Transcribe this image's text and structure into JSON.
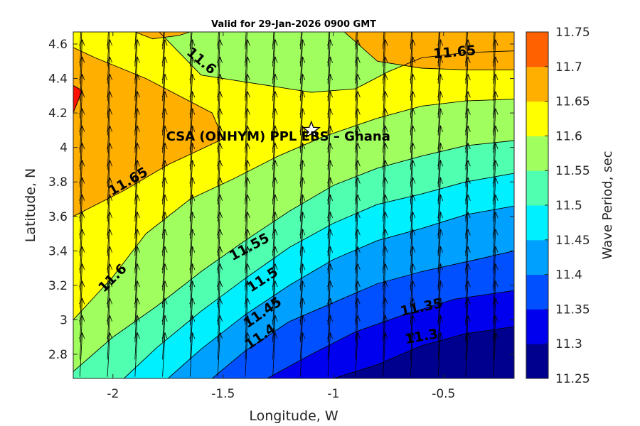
{
  "chart_data": {
    "type": "filled-contour",
    "title": "Valid for 29-Jan-2026 0900 GMT",
    "xlabel": "Longitude, W",
    "ylabel": "Latitude, N",
    "xlim": [
      -2.18,
      -0.18
    ],
    "ylim": [
      2.66,
      4.67
    ],
    "xticks": [
      -2,
      -1.5,
      -1,
      -0.5
    ],
    "xtick_labels": [
      "-2",
      "-1.5",
      "-1",
      "-0.5"
    ],
    "yticks": [
      2.8,
      3,
      3.2,
      3.4,
      3.6,
      3.8,
      4,
      4.2,
      4.4,
      4.6
    ],
    "ytick_labels": [
      "2.8",
      "3",
      "3.2",
      "3.4",
      "3.6",
      "3.8",
      "4",
      "4.2",
      "4.4",
      "4.6"
    ],
    "colorbar": {
      "label": "Wave Period, sec",
      "levels": [
        11.25,
        11.3,
        11.35,
        11.4,
        11.45,
        11.5,
        11.55,
        11.6,
        11.65,
        11.7,
        11.75
      ],
      "tick_labels": [
        "11.25",
        "11.3",
        "11.35",
        "11.4",
        "11.45",
        "11.5",
        "11.55",
        "11.6",
        "11.65",
        "11.7",
        "11.75"
      ],
      "colors": [
        "#00008f",
        "#0000ef",
        "#0050ff",
        "#00a0ff",
        "#00f0ff",
        "#50ffaf",
        "#a0ff5f",
        "#ffff00",
        "#ffaf00",
        "#ff6000",
        "#ff1000"
      ]
    },
    "contours": [
      {
        "level": 11.3,
        "label": "11.3",
        "label_at": [
          -0.6,
          2.9
        ],
        "label_angle": -10,
        "path": [
          [
            -1.0,
            2.66
          ],
          [
            -0.8,
            2.74
          ],
          [
            -0.6,
            2.85
          ],
          [
            -0.4,
            2.92
          ],
          [
            -0.18,
            2.96
          ]
        ]
      },
      {
        "level": 11.35,
        "label": "11.35",
        "label_at": [
          -0.6,
          3.07
        ],
        "label_angle": -12,
        "path": [
          [
            -1.3,
            2.66
          ],
          [
            -1.1,
            2.8
          ],
          [
            -0.9,
            2.93
          ],
          [
            -0.7,
            3.02
          ],
          [
            -0.45,
            3.12
          ],
          [
            -0.18,
            3.17
          ]
        ]
      },
      {
        "level": 11.4,
        "label": "11.4",
        "label_at": [
          -1.33,
          2.9
        ],
        "label_angle": -35,
        "path": [
          [
            -1.55,
            2.66
          ],
          [
            -1.4,
            2.82
          ],
          [
            -1.2,
            2.99
          ],
          [
            -1.0,
            3.1
          ],
          [
            -0.8,
            3.21
          ],
          [
            -0.6,
            3.28
          ],
          [
            -0.35,
            3.35
          ],
          [
            -0.18,
            3.4
          ]
        ]
      },
      {
        "level": 11.45,
        "label": "11.45",
        "label_at": [
          -1.32,
          3.04
        ],
        "label_angle": -35,
        "path": [
          [
            -1.75,
            2.66
          ],
          [
            -1.6,
            2.83
          ],
          [
            -1.4,
            3.03
          ],
          [
            -1.2,
            3.2
          ],
          [
            -1.0,
            3.35
          ],
          [
            -0.8,
            3.46
          ],
          [
            -0.6,
            3.53
          ],
          [
            -0.4,
            3.61
          ],
          [
            -0.18,
            3.66
          ]
        ]
      },
      {
        "level": 11.5,
        "label": "11.5",
        "label_at": [
          -1.32,
          3.23
        ],
        "label_angle": -33,
        "path": [
          [
            -1.95,
            2.66
          ],
          [
            -1.8,
            2.84
          ],
          [
            -1.6,
            3.05
          ],
          [
            -1.4,
            3.24
          ],
          [
            -1.2,
            3.42
          ],
          [
            -1.0,
            3.56
          ],
          [
            -0.8,
            3.67
          ],
          [
            -0.6,
            3.73
          ],
          [
            -0.4,
            3.8
          ],
          [
            -0.18,
            3.85
          ]
        ]
      },
      {
        "level": 11.55,
        "label": "11.55",
        "label_at": [
          -1.38,
          3.42
        ],
        "label_angle": -28,
        "path": [
          [
            -2.18,
            2.7
          ],
          [
            -2.0,
            2.9
          ],
          [
            -1.8,
            3.08
          ],
          [
            -1.6,
            3.28
          ],
          [
            -1.4,
            3.46
          ],
          [
            -1.2,
            3.63
          ],
          [
            -1.0,
            3.78
          ],
          [
            -0.8,
            3.88
          ],
          [
            -0.6,
            3.95
          ],
          [
            -0.4,
            4.01
          ],
          [
            -0.18,
            4.04
          ]
        ]
      },
      {
        "level": 11.6,
        "label": "11.6",
        "label_at": [
          -2.0,
          3.24
        ],
        "label_angle": -45,
        "path": [
          [
            -2.18,
            3.0
          ],
          [
            -2.0,
            3.25
          ],
          [
            -1.85,
            3.5
          ],
          [
            -1.65,
            3.7
          ],
          [
            -1.45,
            3.82
          ],
          [
            -1.25,
            3.95
          ],
          [
            -1.05,
            4.06
          ],
          [
            -0.8,
            4.17
          ],
          [
            -0.6,
            4.24
          ],
          [
            -0.4,
            4.27
          ],
          [
            -0.18,
            4.28
          ]
        ]
      },
      {
        "level": 11.6,
        "label": "11.6",
        "label_at": [
          -1.6,
          4.5
        ],
        "label_angle": 40,
        "path": [
          [
            -1.79,
            4.67
          ],
          [
            -1.6,
            4.42
          ],
          [
            -1.4,
            4.38
          ],
          [
            -1.1,
            4.32
          ],
          [
            -0.9,
            4.34
          ],
          [
            -0.75,
            4.44
          ],
          [
            -0.6,
            4.52
          ],
          [
            -0.4,
            4.55
          ],
          [
            -0.18,
            4.56
          ]
        ]
      },
      {
        "level": 11.65,
        "label": "11.65",
        "label_at": [
          -1.93,
          3.8
        ],
        "label_angle": -30,
        "path": [
          [
            -2.18,
            3.6
          ],
          [
            -1.95,
            3.75
          ],
          [
            -1.75,
            3.9
          ],
          [
            -1.5,
            4.05
          ],
          [
            -1.55,
            4.2
          ],
          [
            -1.85,
            4.4
          ],
          [
            -2.08,
            4.52
          ],
          [
            -2.18,
            4.58
          ]
        ]
      },
      {
        "level": 11.65,
        "label": "11.65",
        "label_at": [
          -0.45,
          4.55
        ],
        "label_angle": -5,
        "path": [
          [
            -0.95,
            4.67
          ],
          [
            -0.8,
            4.5
          ],
          [
            -0.6,
            4.46
          ],
          [
            -0.4,
            4.45
          ],
          [
            -0.18,
            4.45
          ]
        ]
      },
      {
        "level": 11.7,
        "label": "",
        "label_at": null,
        "label_angle": 0,
        "path": [
          [
            -2.18,
            4.2
          ],
          [
            -2.14,
            4.33
          ],
          [
            -2.18,
            4.36
          ]
        ]
      }
    ],
    "star": {
      "x": -1.1,
      "y": 4.1
    },
    "annotation": {
      "text": "CSA (ONHYM) PPL EBS  – Ghana",
      "x": -1.25,
      "y": 4.04
    },
    "vectors": {
      "dx_deg": 0.125,
      "dy_deg": 0.1,
      "u": 0.05,
      "v": 0.9
    }
  }
}
